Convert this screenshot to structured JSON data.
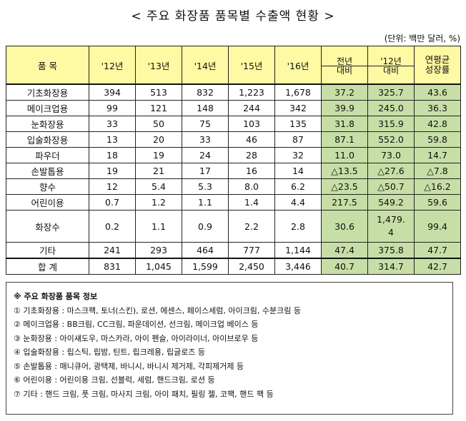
{
  "title": "< 주요 화장품 품목별 수출액 현황 >",
  "unit": "(단위: 백만 달러, %)",
  "header": {
    "item": "품  목",
    "years": [
      "'12년",
      "'13년",
      "'14년",
      "'15년",
      "'16년"
    ],
    "yoy_top": "전년",
    "yoy_bottom": "대비",
    "vs12_top": "'12년",
    "vs12_bottom": "대비",
    "cagr_top": "연평균",
    "cagr_bottom": "성장률"
  },
  "rows": [
    {
      "name": "기초화장용",
      "v": [
        "394",
        "513",
        "832",
        "1,223",
        "1,678"
      ],
      "yoy": "37.2",
      "vs12": "325.7",
      "cagr": "43.6"
    },
    {
      "name": "메이크업용",
      "v": [
        "99",
        "121",
        "148",
        "244",
        "342"
      ],
      "yoy": "39.9",
      "vs12": "245.0",
      "cagr": "36.3"
    },
    {
      "name": "눈화장용",
      "v": [
        "33",
        "50",
        "75",
        "103",
        "135"
      ],
      "yoy": "31.8",
      "vs12": "315.9",
      "cagr": "42.8"
    },
    {
      "name": "입술화장용",
      "v": [
        "13",
        "20",
        "33",
        "46",
        "87"
      ],
      "yoy": "87.1",
      "vs12": "552.0",
      "cagr": "59.8"
    },
    {
      "name": "파우더",
      "v": [
        "18",
        "19",
        "24",
        "28",
        "32"
      ],
      "yoy": "11.0",
      "vs12": "73.0",
      "cagr": "14.7"
    },
    {
      "name": "손발톱용",
      "v": [
        "19",
        "21",
        "17",
        "16",
        "14"
      ],
      "yoy": "△13.5",
      "vs12": "△27.6",
      "cagr": "△7.8"
    },
    {
      "name": "향수",
      "v": [
        "12",
        "5.4",
        "5.3",
        "8.0",
        "6.2"
      ],
      "yoy": "△23.5",
      "vs12": "△50.7",
      "cagr": "△16.2"
    },
    {
      "name": "어린이용",
      "v": [
        "0.7",
        "1.2",
        "1.1",
        "1.4",
        "4.4"
      ],
      "yoy": "217.5",
      "vs12": "549.2",
      "cagr": "59.6"
    },
    {
      "name": "화장수",
      "v": [
        "0.2",
        "1.1",
        "0.9",
        "2.2",
        "2.8"
      ],
      "yoy": "30.6",
      "vs12_line1": "1,479.",
      "vs12_line2": "4",
      "cagr": "99.4"
    },
    {
      "name": "기타",
      "v": [
        "241",
        "293",
        "464",
        "777",
        "1,144"
      ],
      "yoy": "47.4",
      "vs12": "375.8",
      "cagr": "47.7"
    },
    {
      "name": "합  계",
      "v": [
        "831",
        "1,045",
        "1,599",
        "2,450",
        "3,446"
      ],
      "yoy": "40.7",
      "vs12": "314.7",
      "cagr": "42.7"
    }
  ],
  "notes": {
    "heading": "※ 주요 화장품 품목 정보",
    "items": [
      "① 기초화장용 : 마스크팩, 토너(스킨), 로션, 에센스, 페이스세럼, 아이크림, 수분크림 등",
      "② 메이크업용 : BB크림, CC크림, 파운데이션, 선크림, 메이크업 베이스 등",
      "③ 눈화장용 : 아이섀도우, 마스카라, 아이 펜슬, 아이라이너, 아이브로우 등",
      "④ 입술화장용 : 립스틱, 립밤, 틴트, 립크레용, 립글로즈 등",
      "⑤ 손발톱용 : 매니큐어, 광택제, 바니시, 바니시 제거제, 각피제거제 등",
      "⑥ 어린이용 : 어린이용 크림, 선블럭, 세럼, 핸드크림, 로션 등",
      "⑦ 기타 : 핸드 크림, 풋 크림, 마사지 크림, 아이 패치, 필링 젤, 코팩, 핸드 팩 등"
    ]
  }
}
